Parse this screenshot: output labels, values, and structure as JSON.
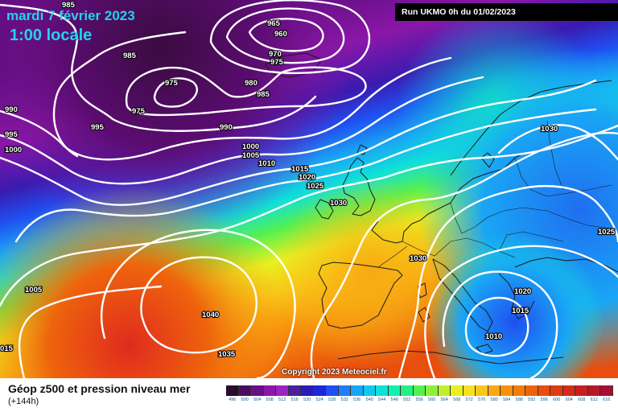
{
  "header": {
    "date_title": "mardi 7 février 2023",
    "time_title": "1:00 locale",
    "run_info": "Run UKMO 0h du 01/02/2023"
  },
  "footer": {
    "title": "Géop z500 et pression niveau mer",
    "subtitle": "(+144h)",
    "copyright": "Copyright 2023 Meteociel.fr"
  },
  "legend": {
    "values": [
      "496",
      "500",
      "504",
      "508",
      "512",
      "516",
      "520",
      "524",
      "528",
      "532",
      "536",
      "540",
      "544",
      "548",
      "552",
      "556",
      "560",
      "564",
      "568",
      "572",
      "576",
      "580",
      "584",
      "588",
      "592",
      "596",
      "600",
      "604",
      "608",
      "612",
      "616"
    ],
    "colors": [
      "#2a0a2e",
      "#4b0c5e",
      "#6a0f86",
      "#8a17a8",
      "#9b23c0",
      "#4b1fa0",
      "#2a1ab8",
      "#1c27d6",
      "#1f4ff0",
      "#1f7df5",
      "#19a6f5",
      "#13c8ee",
      "#10e0d8",
      "#10f0b0",
      "#22f080",
      "#55f050",
      "#8cf03a",
      "#bff02c",
      "#e8f020",
      "#f8e020",
      "#f8c818",
      "#f8a812",
      "#f8900e",
      "#f47a0c",
      "#ee640c",
      "#e84e0e",
      "#e03a12",
      "#d82a1a",
      "#c81e22",
      "#b8162a",
      "#a80e30"
    ]
  },
  "pressure_labels": [
    "985",
    "965",
    "960",
    "970",
    "975",
    "985",
    "975",
    "975",
    "980",
    "985",
    "990",
    "995",
    "995",
    "990",
    "1000",
    "1000",
    "1005",
    "1010",
    "1015",
    "1020",
    "1025",
    "1030",
    "1030",
    "1030",
    "1025",
    "1005",
    "1040",
    "1035",
    "015",
    "1020",
    "1015",
    "1010"
  ]
}
